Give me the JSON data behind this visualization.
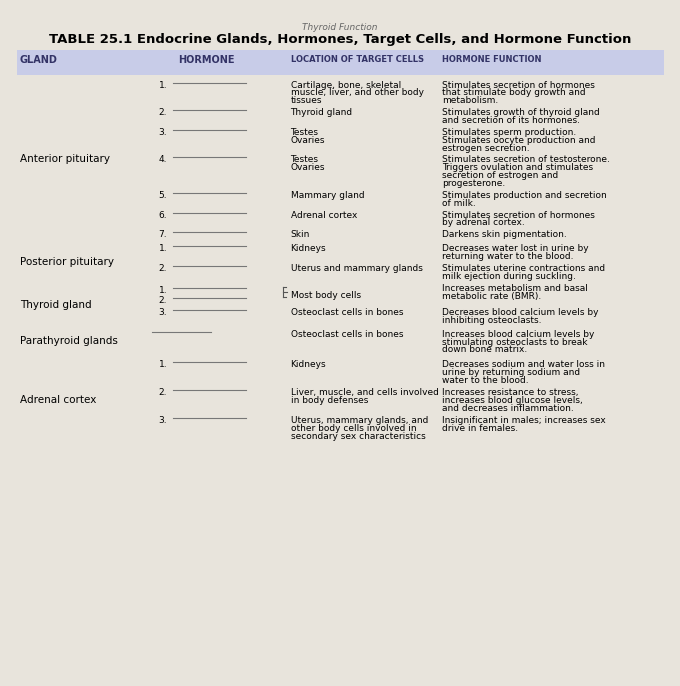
{
  "title": "TABLE 25.1 Endocrine Glands, Hormones, Target Cells, and Hormone Function",
  "subtitle": "Thyroid Function",
  "col_headers": [
    "GLAND",
    "HORMONE",
    "LOCATION OF TARGET CELLS",
    "HORMONE FUNCTION"
  ],
  "header_bg": "#c8cce8",
  "bg_color": "#d8d8d0",
  "paper_color": "#e8e4dc",
  "rows": [
    {
      "gland": "Anterior pituitary",
      "entries": [
        {
          "num": "1.",
          "target": "Cartilage, bone, skeletal\nmuscle, liver, and other body\ntissues",
          "function": "Stimulates secretion of hormones\nthat stimulate body growth and\nmetabolism."
        },
        {
          "num": "2.",
          "target": "Thyroid gland",
          "function": "Stimulates growth of thyroid gland\nand secretion of its hormones."
        },
        {
          "num": "3.",
          "target": "Testes\nOvaries",
          "function": "Stimulates sperm production.\nStimulates oocyte production and\nestrogen secretion."
        },
        {
          "num": "4.",
          "target": "Testes\nOvaries",
          "function": "Stimulates secretion of testosterone.\nTriggers ovulation and stimulates\nsecretion of estrogen and\nprogesterone."
        },
        {
          "num": "5.",
          "target": "Mammary gland",
          "function": "Stimulates production and secretion\nof milk."
        },
        {
          "num": "6.",
          "target": "Adrenal cortex",
          "function": "Stimulates secretion of hormones\nby adrenal cortex."
        },
        {
          "num": "7.",
          "target": "Skin",
          "function": "Darkens skin pigmentation."
        }
      ]
    },
    {
      "gland": "Posterior pituitary",
      "entries": [
        {
          "num": "1.",
          "target": "Kidneys",
          "function": "Decreases water lost in urine by\nreturning water to the blood."
        },
        {
          "num": "2.",
          "target": "Uterus and mammary glands",
          "function": "Stimulates uterine contractions and\nmilk ejection during suckling."
        }
      ]
    },
    {
      "gland": "Thyroid gland",
      "entries": [
        {
          "num": "1.",
          "target": "",
          "function": ""
        },
        {
          "num": "2.",
          "target": "Most body cells",
          "function": "Increases metabolism and basal\nmetabolic rate (BMR)."
        },
        {
          "num": "3.",
          "target": "Osteoclast cells in bones",
          "function": "Decreases blood calcium levels by\ninhibiting osteoclasts."
        }
      ],
      "bracket": true
    },
    {
      "gland": "Parathyroid glands",
      "entries": [
        {
          "num": "",
          "target": "Osteoclast cells in bones",
          "function": "Increases blood calcium levels by\nstimulating osteoclasts to break\ndown bone matrix."
        }
      ]
    },
    {
      "gland": "Adrenal cortex",
      "entries": [
        {
          "num": "1.",
          "target": "Kidneys",
          "function": "Decreases sodium and water loss in\nurine by returning sodium and\nwater to the blood."
        },
        {
          "num": "2.",
          "target": "Liver, muscle, and cells involved\nin body defenses",
          "function": "Increases resistance to stress,\nincreases blood glucose levels,\nand decreases inflammation."
        },
        {
          "num": "3.",
          "target": "Uterus, mammary glands, and\nother body cells involved in\nsecondary sex characteristics",
          "function": "Insignificant in males; increases sex\ndrive in females."
        }
      ]
    }
  ],
  "font_size_title": 9.5,
  "font_size_header": 7,
  "font_size_body": 6.5,
  "font_size_gland": 7.5
}
